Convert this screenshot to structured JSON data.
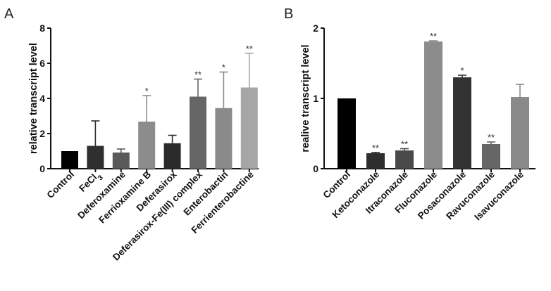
{
  "chart_data": [
    {
      "type": "bar",
      "panel": "A",
      "ylabel": "relative transcript level",
      "xlabel": "",
      "ylim": [
        0,
        8
      ],
      "yticks": [
        "0",
        "2",
        "4",
        "6",
        "8"
      ],
      "categories": [
        "Control",
        "FeCl",
        "Deferoxamine",
        "Ferrioxamine B",
        "Deferasirox",
        "Deferasirox-Fe(III) complex",
        "Enterobactin",
        "Ferrienterobactine"
      ],
      "category_subscripts": [
        "",
        "3",
        "",
        "",
        "",
        "",
        "",
        ""
      ],
      "values": [
        1.0,
        1.3,
        0.92,
        2.68,
        1.45,
        4.1,
        3.45,
        4.62
      ],
      "errors": [
        0,
        1.42,
        0.2,
        1.48,
        0.45,
        1.0,
        2.05,
        1.95
      ],
      "significance": [
        "",
        "",
        "",
        "*",
        "",
        "**",
        "*",
        "**"
      ],
      "colors": [
        "#000000",
        "#2f2f2f",
        "#5a5a5a",
        "#8c8c8c",
        "#2b2b2b",
        "#666666",
        "#8a8a8a",
        "#a6a6a6"
      ]
    },
    {
      "type": "bar",
      "panel": "B",
      "ylabel": "realive transcript level",
      "xlabel": "",
      "ylim": [
        0,
        2
      ],
      "yticks": [
        "0",
        "1",
        "2"
      ],
      "categories": [
        "Control",
        "Ketoconazole",
        "Itraconazole",
        "Fluconazole",
        "Posaconazole",
        "Ravuconazole",
        "Isavuconazole"
      ],
      "category_subscripts": [
        "",
        "",
        "",
        "",
        "",
        "",
        ""
      ],
      "values": [
        1.0,
        0.22,
        0.26,
        1.81,
        1.3,
        0.35,
        1.02
      ],
      "errors": [
        0,
        0.012,
        0.025,
        0.01,
        0.03,
        0.03,
        0.18
      ],
      "significance": [
        "",
        "**",
        "**",
        "**",
        "*",
        "**",
        ""
      ],
      "colors": [
        "#000000",
        "#2e2e2e",
        "#4a4a4a",
        "#8c8c8c",
        "#333333",
        "#666666",
        "#8a8a8a"
      ]
    }
  ]
}
